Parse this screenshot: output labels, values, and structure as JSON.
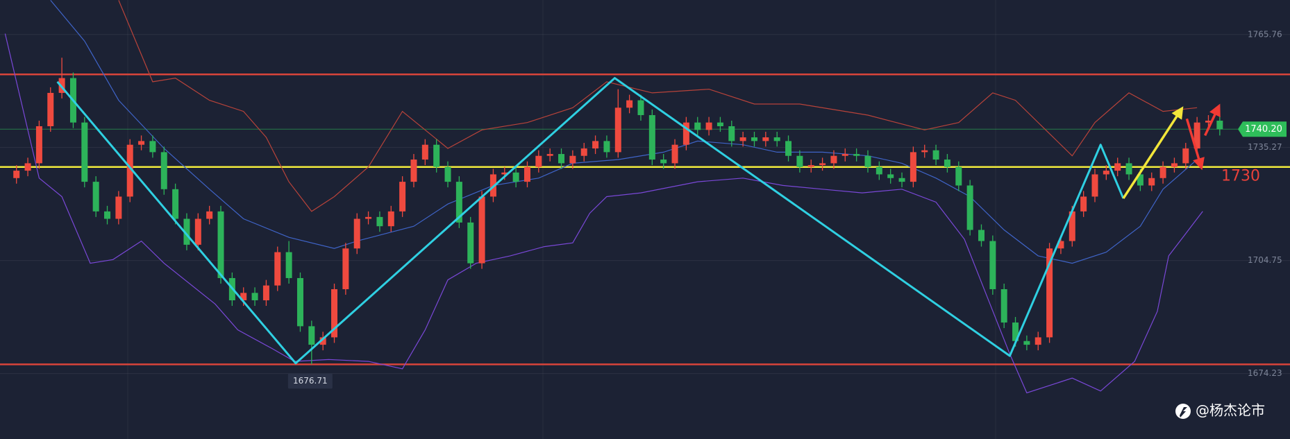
{
  "chart_data": {
    "type": "candlestick",
    "up_color": "#ef4a3f",
    "down_color": "#2db35a",
    "xlim": [
      -1.45,
      107.6
    ],
    "ylim": [
      1656.55,
      1775.08
    ],
    "yticks": [
      1674.23,
      1704.75,
      1735.27,
      1765.76
    ],
    "grid": true,
    "open": [
      1727,
      1729,
      1731,
      1741,
      1750,
      1754,
      1742,
      1726,
      1718,
      1716,
      1722,
      1736,
      1737,
      1734,
      1724,
      1716,
      1709,
      1716,
      1718,
      1700,
      1694,
      1696,
      1694,
      1698,
      1707,
      1700,
      1687,
      1682,
      1684,
      1697,
      1708,
      1716,
      1716.5,
      1714,
      1718,
      1726,
      1732,
      1736,
      1730,
      1726,
      1715,
      1704,
      1722,
      1728,
      1728.5,
      1726,
      1730,
      1733,
      1733.5,
      1731,
      1733,
      1735,
      1737,
      1734,
      1746,
      1748,
      1744,
      1732,
      1731,
      1736,
      1742,
      1740,
      1742,
      1741,
      1737,
      1738,
      1737,
      1738,
      1737,
      1733,
      1730,
      1730.5,
      1731,
      1733,
      1733.5,
      1733,
      1730,
      1728,
      1727,
      1726,
      1734,
      1734.5,
      1732,
      1730,
      1725,
      1713,
      1710,
      1697,
      1688,
      1683,
      1682,
      1684,
      1708,
      1710,
      1718,
      1722,
      1728,
      1729,
      1731,
      1728,
      1725,
      1727,
      1730,
      1731,
      1735,
      1742,
      1742.5
    ],
    "high": [
      1730.5,
      1732.5,
      1742.5,
      1751.5,
      1759.5,
      1755.5,
      1743.5,
      1727.5,
      1719.5,
      1723.5,
      1737.5,
      1738.5,
      1738.5,
      1735.5,
      1725.5,
      1717.5,
      1717.5,
      1719.5,
      1719.5,
      1701.5,
      1697.5,
      1697.5,
      1699.5,
      1708.5,
      1710,
      1701.5,
      1688.5,
      1685.5,
      1698.5,
      1709.5,
      1717.5,
      1718,
      1718,
      1719.5,
      1727.5,
      1733.5,
      1737.5,
      1737.5,
      1731.5,
      1727.5,
      1716.5,
      1723.5,
      1729.5,
      1730,
      1730,
      1731.5,
      1734.5,
      1735,
      1735,
      1734.5,
      1736.5,
      1738.5,
      1738.5,
      1751,
      1749.5,
      1749.5,
      1745.5,
      1733.5,
      1737.5,
      1743.5,
      1743.5,
      1743.5,
      1743.5,
      1742.5,
      1739.5,
      1739.5,
      1739.5,
      1739.5,
      1738.5,
      1734.5,
      1732,
      1732.5,
      1734.5,
      1735,
      1735,
      1734.5,
      1731.5,
      1729.5,
      1728.5,
      1735.5,
      1736,
      1736,
      1733.5,
      1731.5,
      1726.5,
      1714.5,
      1711.5,
      1698.5,
      1689.5,
      1684.5,
      1685.5,
      1709.5,
      1711.5,
      1719.5,
      1723.5,
      1729.5,
      1730.5,
      1732.5,
      1732.5,
      1729.5,
      1728.5,
      1731.5,
      1732.5,
      1736.5,
      1743.5,
      1744,
      1744
    ],
    "low": [
      1725.5,
      1727.5,
      1729.5,
      1739.5,
      1748.5,
      1740.5,
      1724.5,
      1716.5,
      1714.5,
      1714.5,
      1720.5,
      1734.5,
      1732.5,
      1722.5,
      1714.5,
      1707.5,
      1707.5,
      1714.5,
      1698.5,
      1692.5,
      1692.5,
      1692.5,
      1692.5,
      1696.5,
      1698.5,
      1685.5,
      1676.71,
      1680.5,
      1682.5,
      1695.5,
      1706.5,
      1714.5,
      1712.5,
      1712.5,
      1716.5,
      1724.5,
      1730.5,
      1728.5,
      1724.5,
      1713.5,
      1702.5,
      1702.5,
      1720.5,
      1726.5,
      1724.5,
      1724.5,
      1728.5,
      1731.5,
      1729.5,
      1729.5,
      1731.5,
      1733.5,
      1732.5,
      1732.5,
      1744.5,
      1742.5,
      1730.5,
      1729.5,
      1729.5,
      1734.5,
      1738.5,
      1738.5,
      1739.5,
      1735.5,
      1735.5,
      1735.5,
      1735.5,
      1735.5,
      1731.5,
      1728.5,
      1728.5,
      1729,
      1729.5,
      1731.5,
      1731.5,
      1728.5,
      1726.5,
      1725.5,
      1724.5,
      1724.5,
      1732.5,
      1730.5,
      1728.5,
      1723.5,
      1711.5,
      1708.5,
      1695.5,
      1686.5,
      1681.5,
      1680.5,
      1680.5,
      1682.5,
      1706.5,
      1708.5,
      1716.5,
      1720.5,
      1726.5,
      1727.5,
      1726.5,
      1723.5,
      1723.5,
      1725.5,
      1728.5,
      1729.5,
      1733.5,
      1740.5,
      1738.5
    ],
    "close": [
      1729,
      1731,
      1741,
      1750,
      1754,
      1742,
      1726,
      1718,
      1716,
      1722,
      1736,
      1737,
      1734,
      1724,
      1716,
      1709,
      1716,
      1718,
      1700,
      1694,
      1696,
      1694,
      1698,
      1707,
      1700,
      1687,
      1682,
      1684,
      1697,
      1708,
      1716,
      1716.5,
      1714,
      1718,
      1726,
      1732,
      1736,
      1730,
      1726,
      1715,
      1704,
      1722,
      1728,
      1728.5,
      1726,
      1730,
      1733,
      1733.5,
      1731,
      1733,
      1735,
      1737,
      1734,
      1746,
      1748,
      1744,
      1732,
      1731,
      1736,
      1742,
      1740,
      1742,
      1741,
      1737,
      1738,
      1737,
      1738,
      1737,
      1733,
      1730,
      1730.5,
      1731,
      1733,
      1733.5,
      1733,
      1730,
      1728,
      1727,
      1726,
      1734,
      1734.5,
      1732,
      1730,
      1725,
      1713,
      1710,
      1697,
      1688,
      1683,
      1682,
      1684,
      1708,
      1710,
      1718,
      1722,
      1728,
      1729,
      1731,
      1728,
      1725,
      1727,
      1730,
      1731,
      1735,
      1742,
      1742.5,
      1740.2
    ],
    "bands": [
      {
        "color": "#b8433a",
        "x": [
          9,
          12,
          14,
          17,
          20,
          22,
          24,
          26,
          28,
          31,
          34,
          36,
          38,
          41,
          45,
          49,
          52,
          56,
          61,
          65,
          69,
          75,
          80,
          83,
          86,
          88,
          91,
          93,
          95,
          98,
          101,
          104
        ],
        "values": [
          1775,
          1753,
          1754,
          1748,
          1745,
          1738,
          1726,
          1718,
          1722,
          1730,
          1745,
          1740,
          1735,
          1740,
          1742,
          1746,
          1753,
          1750,
          1751,
          1747,
          1747,
          1744,
          1740,
          1742,
          1750,
          1748,
          1739,
          1733,
          1742,
          1750,
          1745,
          1746
        ]
      },
      {
        "color": "#3f64c8",
        "x": [
          3,
          6,
          9,
          13,
          17,
          20,
          24,
          28,
          30,
          35,
          38,
          42,
          46,
          49,
          53,
          57,
          60,
          64,
          67,
          71,
          75,
          78,
          81,
          84,
          87,
          90,
          93,
          96,
          99,
          101,
          104
        ],
        "values": [
          1775,
          1764,
          1748,
          1735,
          1724,
          1716,
          1711,
          1708,
          1710,
          1714,
          1720,
          1725,
          1727,
          1731,
          1732,
          1734,
          1737,
          1736,
          1734,
          1734,
          1733,
          1731,
          1727,
          1722,
          1713,
          1706,
          1704,
          1707,
          1714,
          1724,
          1732
        ]
      },
      {
        "color": "#7a48d8",
        "x": [
          -1,
          2,
          4,
          6.5,
          8.5,
          11,
          13,
          17.5,
          19.5,
          22.5,
          24.5,
          27.5,
          31,
          34,
          36,
          38,
          40.5,
          43.5,
          46.5,
          49,
          50.5,
          52,
          55,
          60,
          64,
          67.5,
          71,
          74.5,
          78,
          81,
          83.5,
          85.5,
          87.5,
          89,
          93,
          95.5,
          98.5,
          100.5,
          101.5,
          103,
          104.5
        ],
        "values": [
          1766,
          1727,
          1722,
          1704,
          1705,
          1710,
          1704,
          1693,
          1686,
          1681,
          1677.5,
          1678,
          1677.5,
          1675.5,
          1686,
          1699.5,
          1704,
          1706,
          1708.5,
          1709.5,
          1717.5,
          1722,
          1723,
          1726,
          1727,
          1725,
          1724,
          1723,
          1724,
          1720.5,
          1710.5,
          1695,
          1679.5,
          1669,
          1673,
          1669.5,
          1677.5,
          1691,
          1706,
          1712,
          1718
        ]
      }
    ],
    "zigzag": {
      "color": "#2fd0e2",
      "x": [
        3.6,
        24.6,
        52.7,
        87.5,
        95.5,
        97.5
      ],
      "values": [
        1753,
        1677,
        1754,
        1679,
        1736,
        1721.5
      ]
    },
    "arrows": [
      {
        "color": "#f2e63a",
        "x": [
          97.5,
          102.5
        ],
        "values": [
          1721.5,
          1745
        ]
      },
      {
        "color": "#f03a34",
        "x": [
          103.1,
          104.3
        ],
        "values": [
          1743,
          1730.7
        ]
      },
      {
        "color": "#f03a34",
        "x": [
          104.7,
          105.8
        ],
        "values": [
          1738.5,
          1745.6
        ]
      }
    ],
    "levels": [
      {
        "value": 1755,
        "color": "#d9443a"
      },
      {
        "value": 1730,
        "color": "#f2ec3c"
      },
      {
        "value": 1676.7,
        "color": "#d9443a"
      }
    ],
    "level_label_color": "#e8413a",
    "last_price": {
      "value": 1740.2,
      "label": "1740.20",
      "color": "#2ebd5a"
    },
    "watermark": "@杨杰论市"
  }
}
